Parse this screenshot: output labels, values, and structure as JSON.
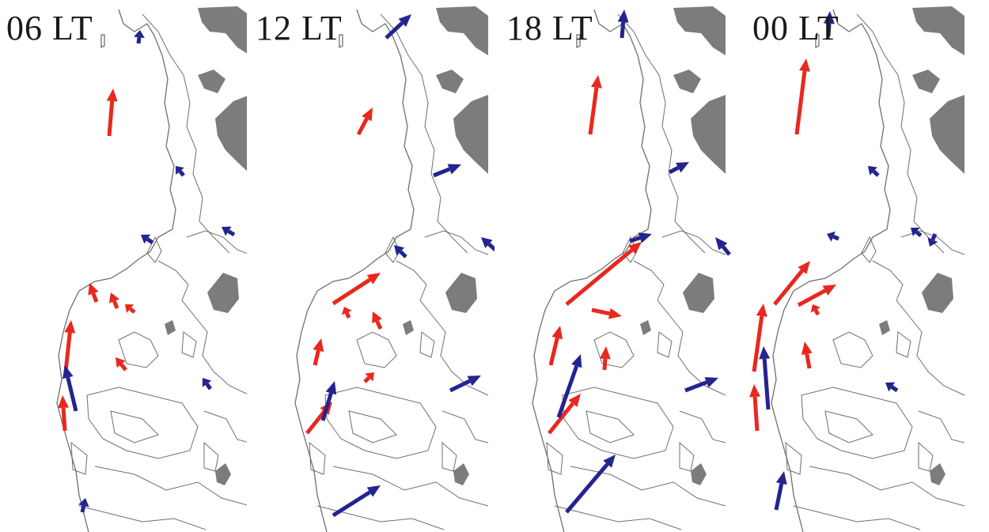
{
  "panels": [
    {
      "label": "06 LT",
      "red_vectors": [
        {
          "from": [
            138,
            172
          ],
          "to": [
            143,
            112
          ]
        },
        {
          "from": [
            122,
            382
          ],
          "to": [
            113,
            358
          ]
        },
        {
          "from": [
            148,
            390
          ],
          "to": [
            140,
            370
          ]
        },
        {
          "from": [
            170,
            395
          ],
          "to": [
            158,
            385
          ]
        },
        {
          "from": [
            83,
            470
          ],
          "to": [
            90,
            405
          ]
        },
        {
          "from": [
            82,
            545
          ],
          "to": [
            79,
            500
          ]
        },
        {
          "from": [
            159,
            468
          ],
          "to": [
            146,
            452
          ]
        }
      ],
      "blue_vectors": [
        {
          "from": [
            175,
            55
          ],
          "to": [
            177,
            38
          ]
        },
        {
          "from": [
            232,
            222
          ],
          "to": [
            222,
            210
          ]
        },
        {
          "from": [
            193,
            307
          ],
          "to": [
            178,
            297
          ]
        },
        {
          "from": [
            296,
            297
          ],
          "to": [
            280,
            287
          ]
        },
        {
          "from": [
            96,
            520
          ],
          "to": [
            82,
            462
          ]
        },
        {
          "from": [
            266,
            492
          ],
          "to": [
            256,
            478
          ]
        },
        {
          "from": [
            104,
            648
          ],
          "to": [
            108,
            630
          ]
        }
      ]
    },
    {
      "label": "12 LT",
      "red_vectors": [
        {
          "from": [
            140,
            170
          ],
          "to": [
            158,
            136
          ]
        },
        {
          "from": [
            108,
            384
          ],
          "to": [
            168,
            345
          ]
        },
        {
          "from": [
            128,
            402
          ],
          "to": [
            122,
            388
          ]
        },
        {
          "from": [
            168,
            416
          ],
          "to": [
            158,
            394
          ]
        },
        {
          "from": [
            85,
            462
          ],
          "to": [
            93,
            428
          ]
        },
        {
          "from": [
            75,
            548
          ],
          "to": [
            107,
            508
          ]
        },
        {
          "from": [
            148,
            483
          ],
          "to": [
            160,
            471
          ]
        }
      ],
      "blue_vectors": [
        {
          "from": [
            175,
            48
          ],
          "to": [
            207,
            18
          ]
        },
        {
          "from": [
            235,
            222
          ],
          "to": [
            270,
            208
          ]
        },
        {
          "from": [
            200,
            325
          ],
          "to": [
            185,
            310
          ]
        },
        {
          "from": [
            313,
            316
          ],
          "to": [
            295,
            300
          ]
        },
        {
          "from": [
            95,
            532
          ],
          "to": [
            110,
            482
          ]
        },
        {
          "from": [
            256,
            494
          ],
          "to": [
            295,
            475
          ]
        },
        {
          "from": [
            108,
            652
          ],
          "to": [
            168,
            614
          ]
        }
      ]
    },
    {
      "label": "18 LT",
      "red_vectors": [
        {
          "from": [
            120,
            170
          ],
          "to": [
            130,
            95
          ]
        },
        {
          "from": [
            90,
            385
          ],
          "to": [
            185,
            306
          ]
        },
        {
          "from": [
            122,
            392
          ],
          "to": [
            160,
            400
          ]
        },
        {
          "from": [
            70,
            462
          ],
          "to": [
            82,
            412
          ]
        },
        {
          "from": [
            138,
            468
          ],
          "to": [
            140,
            438
          ]
        },
        {
          "from": [
            68,
            548
          ],
          "to": [
            108,
            498
          ]
        }
      ],
      "blue_vectors": [
        {
          "from": [
            160,
            48
          ],
          "to": [
            163,
            12
          ]
        },
        {
          "from": [
            220,
            218
          ],
          "to": [
            245,
            205
          ]
        },
        {
          "from": [
            170,
            305
          ],
          "to": [
            198,
            296
          ]
        },
        {
          "from": [
            296,
            322
          ],
          "to": [
            278,
            300
          ]
        },
        {
          "from": [
            80,
            528
          ],
          "to": [
            108,
            448
          ]
        },
        {
          "from": [
            240,
            494
          ],
          "to": [
            282,
            478
          ]
        },
        {
          "from": [
            90,
            648
          ],
          "to": [
            152,
            575
          ]
        }
      ]
    },
    {
      "label": "00 LT",
      "red_vectors": [
        {
          "from": [
            68,
            170
          ],
          "to": [
            80,
            74
          ]
        },
        {
          "from": [
            40,
            385
          ],
          "to": [
            85,
            330
          ]
        },
        {
          "from": [
            70,
            386
          ],
          "to": [
            118,
            360
          ]
        },
        {
          "from": [
            95,
            398
          ],
          "to": [
            88,
            385
          ]
        },
        {
          "from": [
            84,
            466
          ],
          "to": [
            78,
            432
          ]
        },
        {
          "from": [
            14,
            470
          ],
          "to": [
            26,
            384
          ]
        },
        {
          "from": [
            18,
            545
          ],
          "to": [
            14,
            486
          ]
        }
      ],
      "blue_vectors": [
        {
          "from": [
            108,
            46
          ],
          "to": [
            110,
            14
          ]
        },
        {
          "from": [
            171,
            222
          ],
          "to": [
            158,
            210
          ]
        },
        {
          "from": [
            121,
            302
          ],
          "to": [
            106,
            296
          ]
        },
        {
          "from": [
            225,
            298
          ],
          "to": [
            212,
            288
          ]
        },
        {
          "from": [
            32,
            518
          ],
          "to": [
            26,
            438
          ]
        },
        {
          "from": [
            243,
            296
          ],
          "to": [
            236,
            312
          ]
        },
        {
          "from": [
            195,
            494
          ],
          "to": [
            180,
            484
          ]
        },
        {
          "from": [
            42,
            645
          ],
          "to": [
            52,
            596
          ]
        }
      ]
    }
  ],
  "colors": {
    "red_vector": "#e8281f",
    "blue_vector": "#24248f",
    "coastline": "#6f6f6f",
    "land_shade": "#7c7c7c"
  }
}
